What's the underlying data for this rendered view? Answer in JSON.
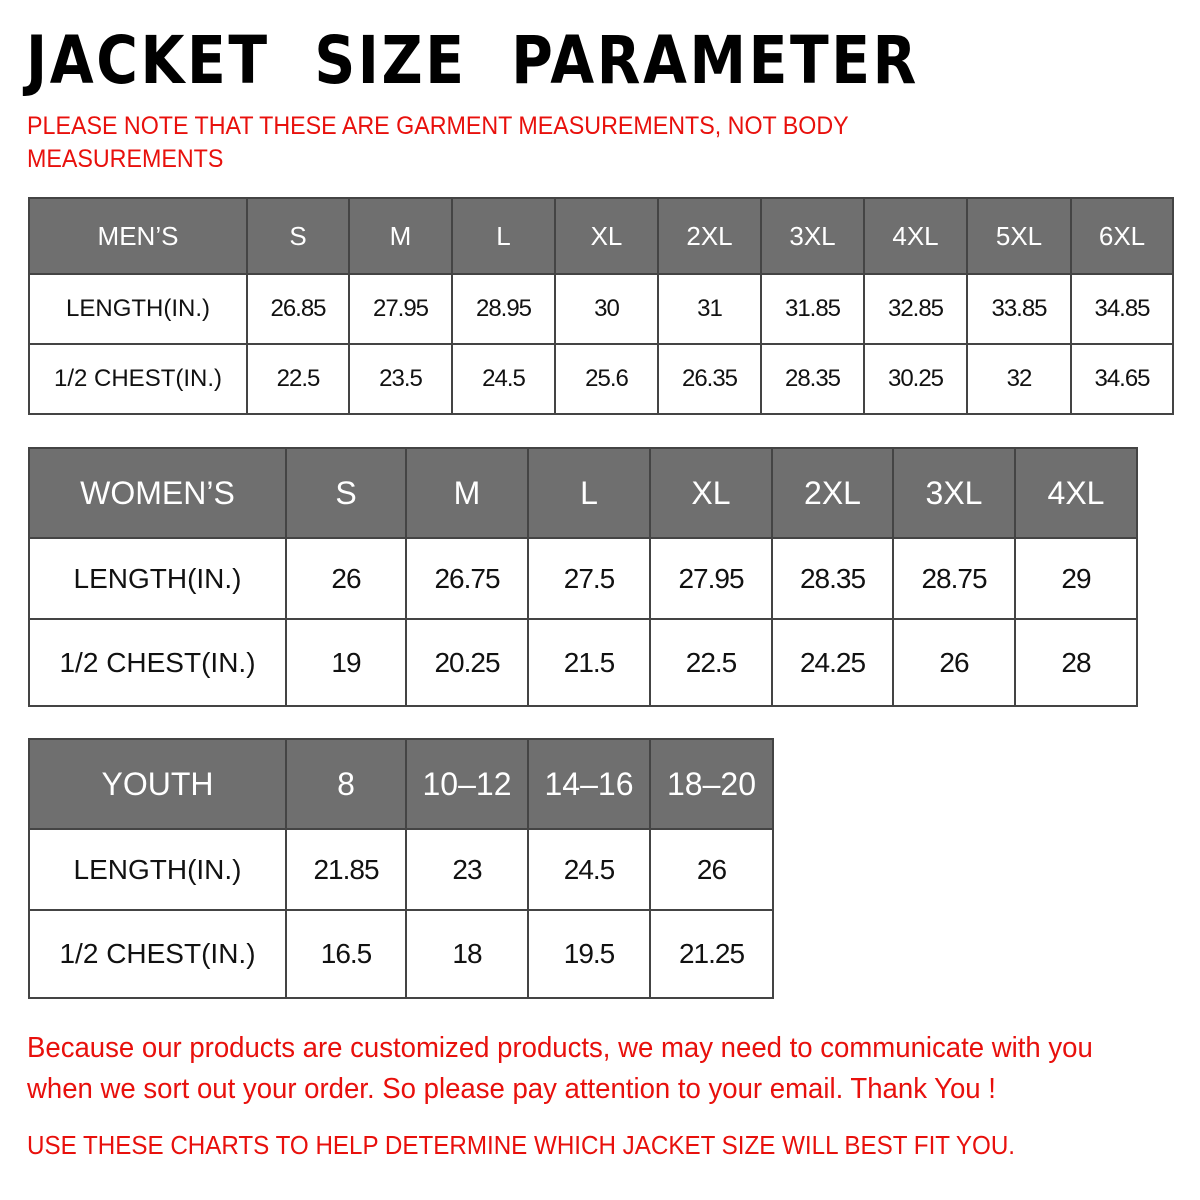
{
  "title": "JACKET  SIZE  PARAMETER",
  "note": "PLEASE NOTE THAT THESE ARE GARMENT MEASUREMENTS, NOT BODY MEASUREMENTS",
  "colors": {
    "header_bg": "#6f6f6f",
    "accent_red": "#e8100c"
  },
  "tables": {
    "men": {
      "header": [
        "MEN’S",
        "S",
        "M",
        "L",
        "XL",
        "2XL",
        "3XL",
        "4XL",
        "5XL",
        "6XL"
      ],
      "rows": [
        [
          "LENGTH(IN.)",
          "26.85",
          "27.95",
          "28.95",
          "30",
          "31",
          "31.85",
          "32.85",
          "33.85",
          "34.85"
        ],
        [
          "1/2 CHEST(IN.)",
          "22.5",
          "23.5",
          "24.5",
          "25.6",
          "26.35",
          "28.35",
          "30.25",
          "32",
          "34.65"
        ]
      ]
    },
    "women": {
      "header": [
        "WOMEN’S",
        "S",
        "M",
        "L",
        "XL",
        "2XL",
        "3XL",
        "4XL"
      ],
      "rows": [
        [
          "LENGTH(IN.)",
          "26",
          "26.75",
          "27.5",
          "27.95",
          "28.35",
          "28.75",
          "29"
        ],
        [
          "1/2 CHEST(IN.)",
          "19",
          "20.25",
          "21.5",
          "22.5",
          "24.25",
          "26",
          "28"
        ]
      ]
    },
    "youth": {
      "header": [
        "YOUTH",
        "8",
        "10–12",
        "14–16",
        "18–20"
      ],
      "rows": [
        [
          "LENGTH(IN.)",
          "21.85",
          "23",
          "24.5",
          "26"
        ],
        [
          "1/2 CHEST(IN.)",
          "16.5",
          "18",
          "19.5",
          "21.25"
        ]
      ]
    }
  },
  "footer": {
    "message": "Because our products are customized products, we may need to communicate with you when we sort out your order. So please pay attention to your email. Thank You !",
    "advice": "USE THESE CHARTS TO HELP DETERMINE WHICH JACKET SIZE WILL BEST FIT YOU."
  }
}
